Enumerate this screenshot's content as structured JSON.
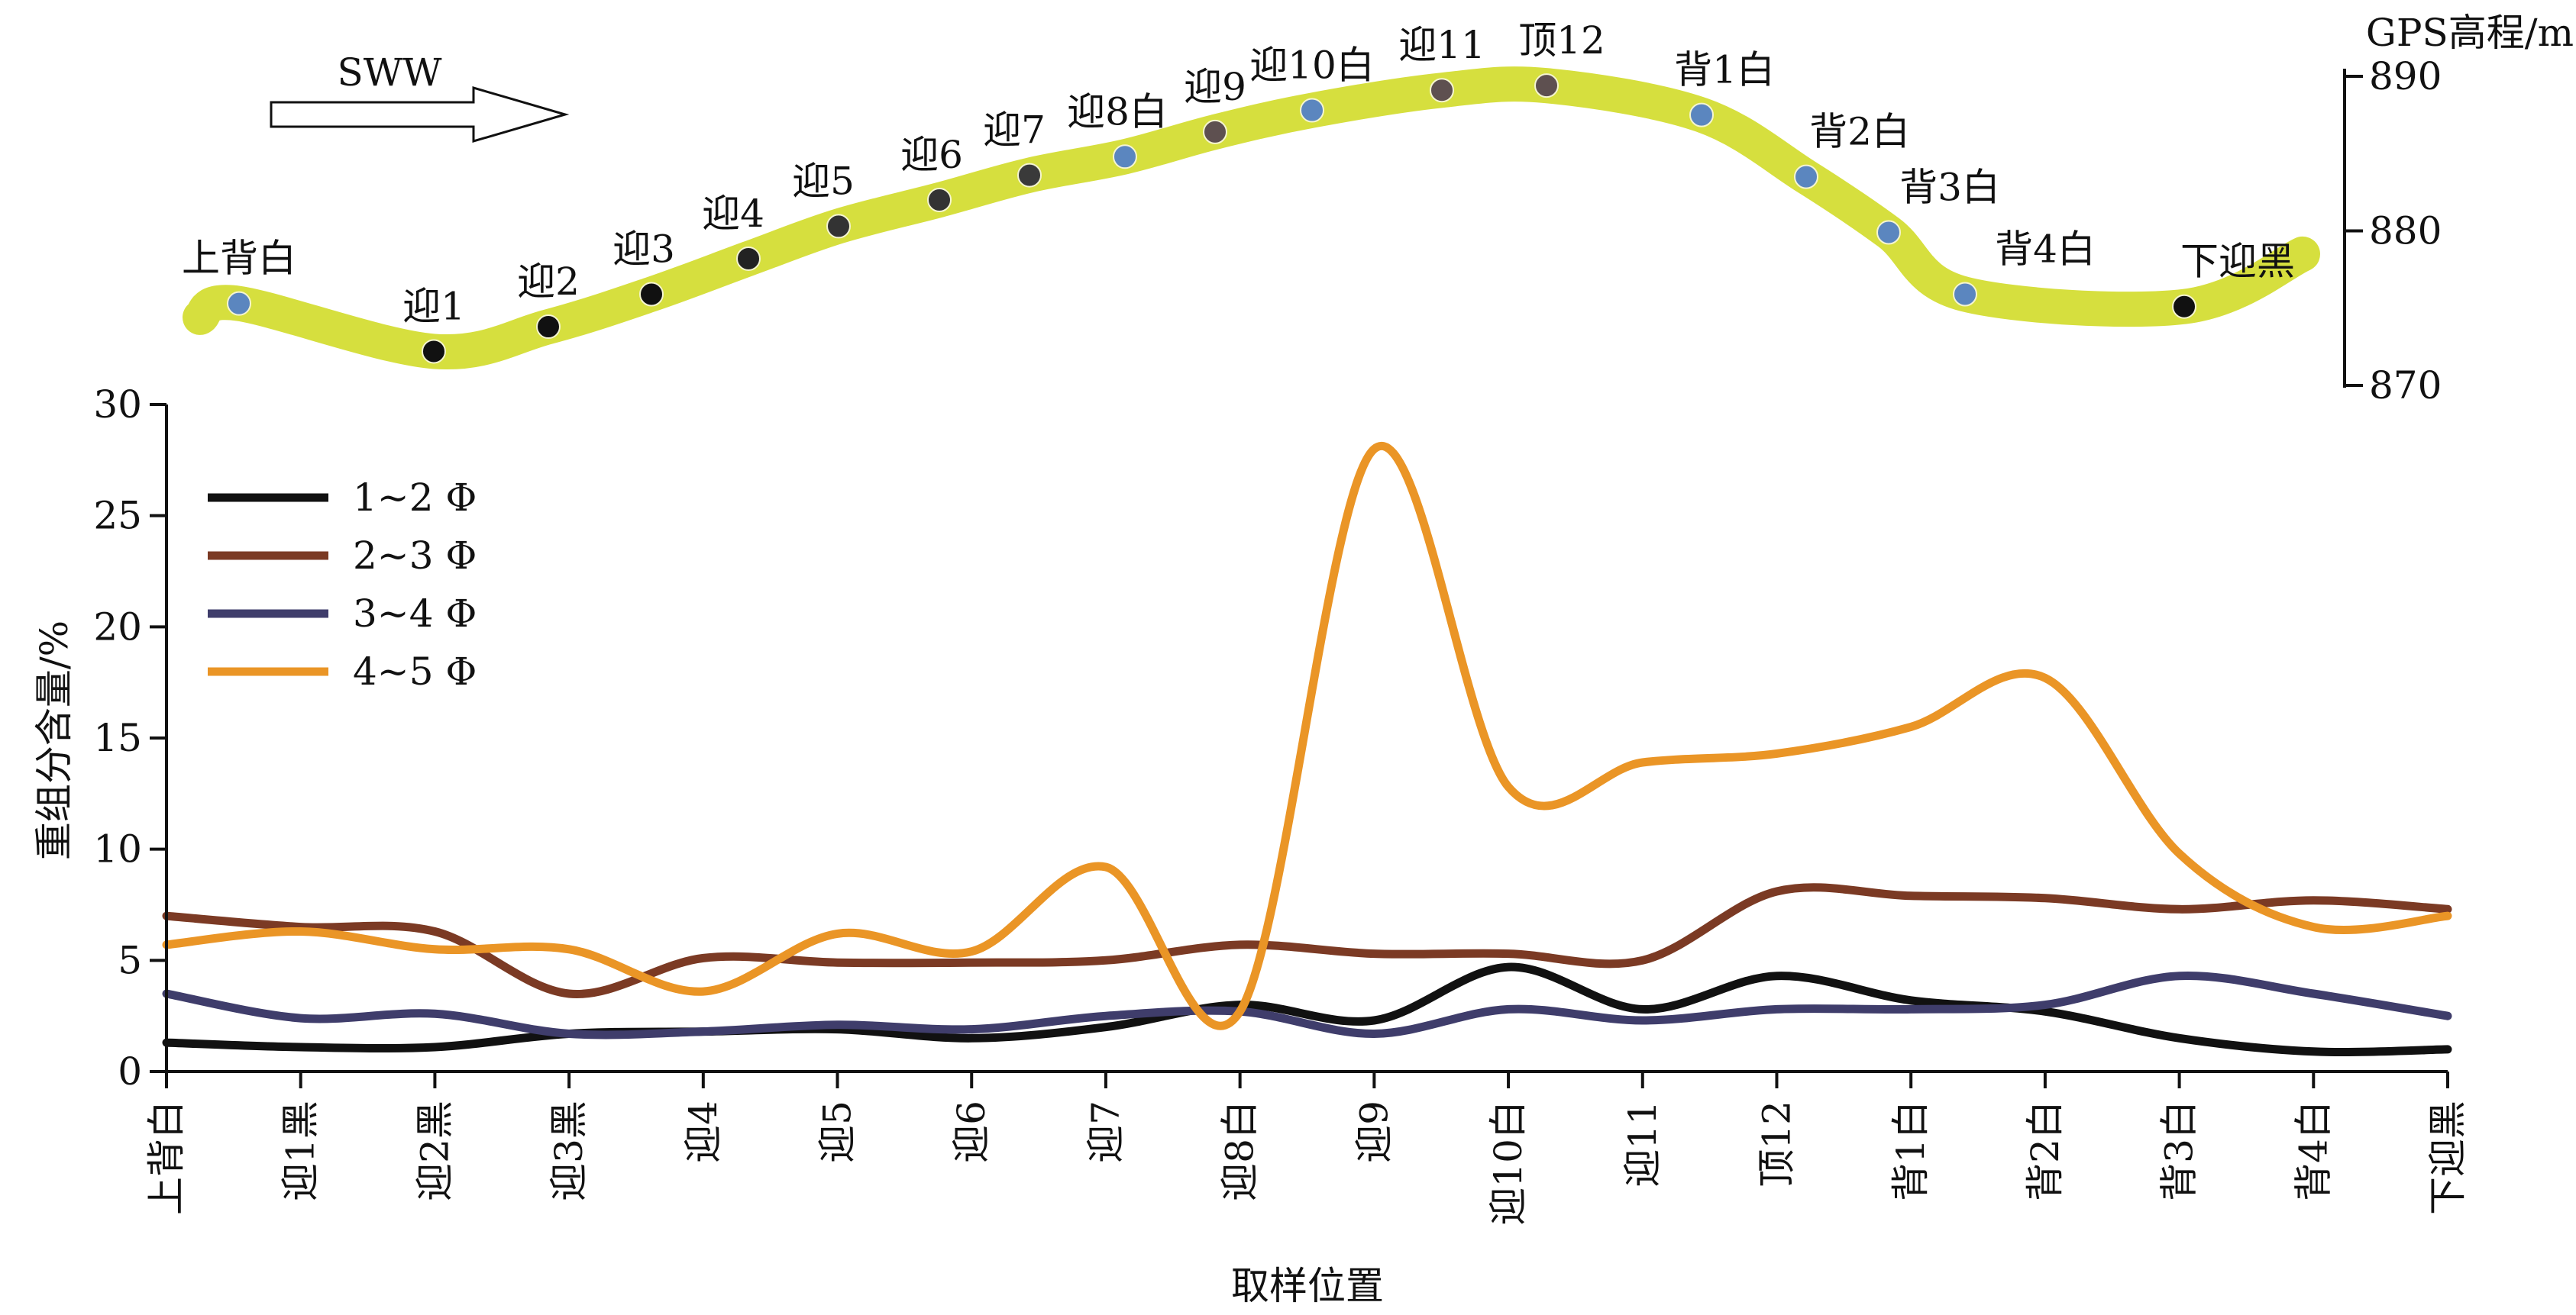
{
  "profile": {
    "wind_label": "SWW",
    "elevation_axis": {
      "label": "GPS高程/m",
      "ticks": [
        890,
        880,
        870
      ]
    },
    "points": [
      {
        "label": "上背白",
        "elev": 875.3,
        "color": "#5b86bf"
      },
      {
        "label": "迎1",
        "elev": 872.2,
        "color": "#111111"
      },
      {
        "label": "迎2",
        "elev": 873.8,
        "color": "#111111"
      },
      {
        "label": "迎3",
        "elev": 875.9,
        "color": "#111111"
      },
      {
        "label": "迎4",
        "elev": 878.2,
        "color": "#222222"
      },
      {
        "label": "迎5",
        "elev": 880.3,
        "color": "#333333"
      },
      {
        "label": "迎6",
        "elev": 882.0,
        "color": "#333333"
      },
      {
        "label": "迎7",
        "elev": 883.6,
        "color": "#3a3a3a"
      },
      {
        "label": "迎8白",
        "elev": 884.8,
        "color": "#5b86bf"
      },
      {
        "label": "迎9",
        "elev": 886.4,
        "color": "#5e5050"
      },
      {
        "label": "迎10白",
        "elev": 887.8,
        "color": "#5b86bf"
      },
      {
        "label": "迎11",
        "elev": 889.1,
        "color": "#5e5050"
      },
      {
        "label": "顶12",
        "elev": 889.4,
        "color": "#5e5050"
      },
      {
        "label": "背1白",
        "elev": 887.5,
        "color": "#5b86bf"
      },
      {
        "label": "背2白",
        "elev": 883.5,
        "color": "#5b86bf"
      },
      {
        "label": "背3白",
        "elev": 879.9,
        "color": "#5b86bf"
      },
      {
        "label": "背4白",
        "elev": 875.9,
        "color": "#5b86bf"
      },
      {
        "label": "下迎黑",
        "elev": 875.1,
        "color": "#111111"
      }
    ]
  },
  "chart_data": {
    "type": "line",
    "xlabel": "取样位置",
    "ylabel": "重组分含量/%",
    "ylim": [
      0,
      30
    ],
    "yticks": [
      0,
      5,
      10,
      15,
      20,
      25,
      30
    ],
    "legend_position": "upper-left",
    "categories": [
      "上背白",
      "迎1黑",
      "迎2黑",
      "迎3黑",
      "迎4",
      "迎5",
      "迎6",
      "迎7",
      "迎8白",
      "迎9",
      "迎10白",
      "迎11",
      "顶12",
      "背1白",
      "背2白",
      "背3白",
      "背4白",
      "下迎黑"
    ],
    "series": [
      {
        "name": "1~2 Φ",
        "color": "#111111",
        "values": [
          1.3,
          1.1,
          1.1,
          1.7,
          1.8,
          1.9,
          1.5,
          2.0,
          3.0,
          2.3,
          4.7,
          2.8,
          4.3,
          3.2,
          2.7,
          1.5,
          0.9,
          1.0
        ]
      },
      {
        "name": "2~3 Φ",
        "color": "#7b3a24",
        "values": [
          7.0,
          6.5,
          6.3,
          3.5,
          5.1,
          4.9,
          4.9,
          5.0,
          5.7,
          5.3,
          5.3,
          5.0,
          8.1,
          7.9,
          7.8,
          7.3,
          7.7,
          7.3
        ]
      },
      {
        "name": "3~4 Φ",
        "color": "#3f3d6b",
        "values": [
          3.5,
          2.4,
          2.6,
          1.7,
          1.8,
          2.1,
          1.9,
          2.5,
          2.7,
          1.7,
          2.8,
          2.3,
          2.8,
          2.8,
          3.0,
          4.3,
          3.5,
          2.5
        ]
      },
      {
        "name": "4~5 Φ",
        "color": "#ea9526",
        "values": [
          5.7,
          6.3,
          5.5,
          5.5,
          3.6,
          6.2,
          5.4,
          9.2,
          2.7,
          28.0,
          12.8,
          13.9,
          14.3,
          15.5,
          17.7,
          9.8,
          6.5,
          7.0
        ]
      }
    ]
  }
}
